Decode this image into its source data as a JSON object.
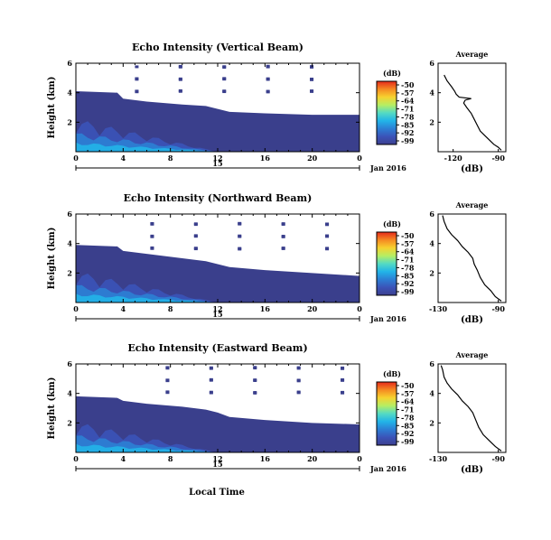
{
  "colors": {
    "background": "#3a3f8c",
    "colormap": [
      "#3c3f8f",
      "#3b53b8",
      "#2c7fd4",
      "#22b4e8",
      "#54dbc3",
      "#b6ee63",
      "#f6d22f",
      "#f58a22",
      "#e52a1c"
    ]
  },
  "xlabel": "Local Time",
  "chart_data": [
    {
      "type": "heatmap",
      "title": "Echo Intensity (Vertical Beam)",
      "ylabel": "Height (km)",
      "x_ticks": [
        "0",
        "4",
        "8",
        "12",
        "16",
        "20",
        "0"
      ],
      "xlim": [
        0,
        24
      ],
      "date_ticks": [
        "15"
      ],
      "date_label": "Jan 2016",
      "ylim": [
        0,
        6
      ],
      "y_ticks": [
        "2",
        "4",
        "6"
      ],
      "colorbar": {
        "label": "(dB)",
        "ticks": [
          "-50",
          "-57",
          "-64",
          "-71",
          "-78",
          "-85",
          "-92",
          "-99"
        ]
      },
      "top_boundary": [
        [
          0,
          4.1
        ],
        [
          3.5,
          4.0
        ],
        [
          4,
          3.6
        ],
        [
          6,
          3.4
        ],
        [
          9,
          3.2
        ],
        [
          11,
          3.1
        ],
        [
          12,
          2.9
        ],
        [
          13,
          2.7
        ],
        [
          16,
          2.6
        ],
        [
          20,
          2.5
        ],
        [
          24,
          2.5
        ]
      ],
      "profile": {
        "title": "Average",
        "xlabel": "(dB)",
        "xlim": [
          -130,
          -85
        ],
        "x_ticks": [
          "-120",
          "-90"
        ],
        "ylim": [
          0,
          6
        ],
        "y_ticks": [
          "2",
          "4",
          "6"
        ],
        "points": [
          [
            -88,
            0.1
          ],
          [
            -90,
            0.3
          ],
          [
            -93,
            0.5
          ],
          [
            -96,
            0.8
          ],
          [
            -99,
            1.1
          ],
          [
            -102,
            1.4
          ],
          [
            -104,
            1.8
          ],
          [
            -106,
            2.2
          ],
          [
            -108,
            2.6
          ],
          [
            -111,
            3.0
          ],
          [
            -113,
            3.3
          ],
          [
            -112,
            3.5
          ],
          [
            -108,
            3.6
          ],
          [
            -116,
            3.7
          ],
          [
            -118,
            3.9
          ],
          [
            -119,
            4.1
          ],
          [
            -121,
            4.4
          ],
          [
            -124,
            4.8
          ],
          [
            -126,
            5.2
          ]
        ]
      }
    },
    {
      "type": "heatmap",
      "title": "Echo Intensity (Northward Beam)",
      "ylabel": "Height (km)",
      "x_ticks": [
        "0",
        "4",
        "8",
        "12",
        "16",
        "20",
        "0"
      ],
      "xlim": [
        0,
        24
      ],
      "date_ticks": [
        "15"
      ],
      "date_label": "Jan 2016",
      "ylim": [
        0,
        6
      ],
      "y_ticks": [
        "2",
        "4",
        "6"
      ],
      "colorbar": {
        "label": "(dB)",
        "ticks": [
          "-50",
          "-57",
          "-64",
          "-71",
          "-78",
          "-85",
          "-92",
          "-99"
        ]
      },
      "top_boundary": [
        [
          0,
          3.9
        ],
        [
          3.5,
          3.8
        ],
        [
          4,
          3.5
        ],
        [
          6,
          3.3
        ],
        [
          9,
          3.0
        ],
        [
          11,
          2.8
        ],
        [
          12,
          2.6
        ],
        [
          13,
          2.4
        ],
        [
          16,
          2.2
        ],
        [
          20,
          2.0
        ],
        [
          24,
          1.8
        ]
      ],
      "profile": {
        "title": "Average",
        "xlabel": "(dB)",
        "xlim": [
          -130,
          -85
        ],
        "x_ticks": [
          "-130",
          "-90"
        ],
        "ylim": [
          0,
          6
        ],
        "y_ticks": [
          "2",
          "4",
          "6"
        ],
        "points": [
          [
            -88,
            0.1
          ],
          [
            -92,
            0.4
          ],
          [
            -95,
            0.8
          ],
          [
            -99,
            1.2
          ],
          [
            -102,
            1.7
          ],
          [
            -104,
            2.2
          ],
          [
            -106,
            2.6
          ],
          [
            -107,
            3.0
          ],
          [
            -110,
            3.4
          ],
          [
            -114,
            3.8
          ],
          [
            -117,
            4.2
          ],
          [
            -121,
            4.6
          ],
          [
            -124,
            5.0
          ],
          [
            -126,
            5.5
          ],
          [
            -127,
            5.9
          ]
        ]
      }
    },
    {
      "type": "heatmap",
      "title": "Echo Intensity (Eastward Beam)",
      "ylabel": "Height (km)",
      "x_ticks": [
        "0",
        "4",
        "8",
        "12",
        "16",
        "20",
        "0"
      ],
      "xlim": [
        0,
        24
      ],
      "date_ticks": [
        "15"
      ],
      "date_label": "Jan 2016",
      "ylim": [
        0,
        6
      ],
      "y_ticks": [
        "2",
        "4",
        "6"
      ],
      "colorbar": {
        "label": "(dB)",
        "ticks": [
          "-50",
          "-57",
          "-64",
          "-71",
          "-78",
          "-85",
          "-92",
          "-99"
        ]
      },
      "top_boundary": [
        [
          0,
          3.8
        ],
        [
          3.5,
          3.7
        ],
        [
          4,
          3.5
        ],
        [
          6,
          3.3
        ],
        [
          9,
          3.1
        ],
        [
          11,
          2.9
        ],
        [
          12,
          2.7
        ],
        [
          13,
          2.4
        ],
        [
          16,
          2.2
        ],
        [
          20,
          2.0
        ],
        [
          24,
          1.9
        ]
      ],
      "profile": {
        "title": "Average",
        "xlabel": "(dB)",
        "xlim": [
          -130,
          -85
        ],
        "x_ticks": [
          "-130",
          "-90"
        ],
        "ylim": [
          0,
          6
        ],
        "y_ticks": [
          "2",
          "4",
          "6"
        ],
        "points": [
          [
            -88,
            0.1
          ],
          [
            -92,
            0.4
          ],
          [
            -96,
            0.8
          ],
          [
            -100,
            1.2
          ],
          [
            -103,
            1.7
          ],
          [
            -105,
            2.2
          ],
          [
            -107,
            2.7
          ],
          [
            -110,
            3.1
          ],
          [
            -114,
            3.5
          ],
          [
            -117,
            3.9
          ],
          [
            -121,
            4.3
          ],
          [
            -124,
            4.7
          ],
          [
            -126,
            5.1
          ],
          [
            -127,
            5.6
          ],
          [
            -128,
            5.9
          ]
        ]
      }
    }
  ]
}
